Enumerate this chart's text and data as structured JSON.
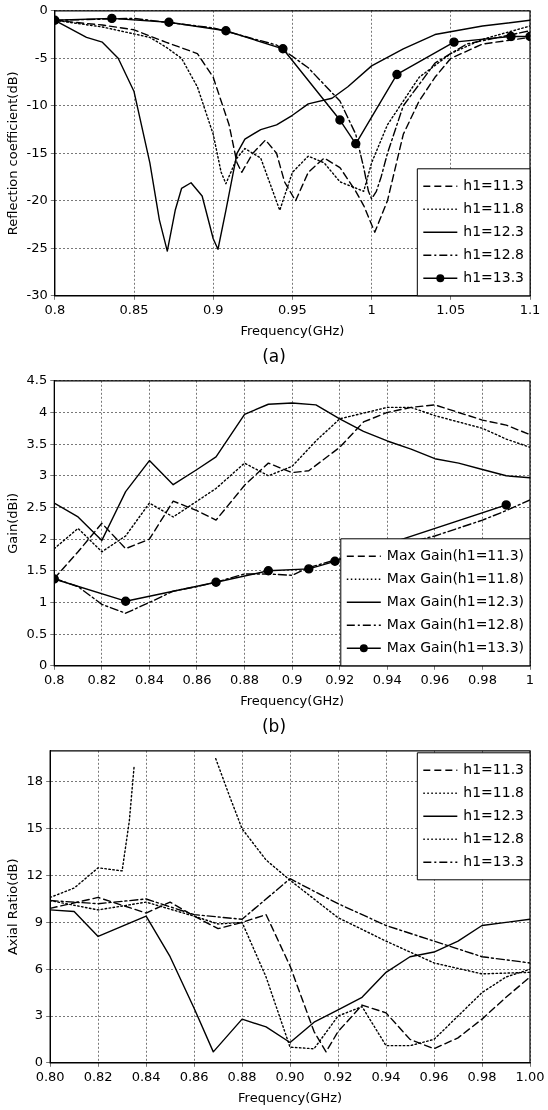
{
  "chart_data": [
    {
      "type": "line",
      "xlabel": "Frequency(GHz)",
      "ylabel": "Reflection coefficient(dB)",
      "annotations": [
        "(a)"
      ],
      "xlim": [
        0.8,
        1.1
      ],
      "xticks": [
        0.8,
        0.85,
        0.9,
        0.95,
        1,
        1.05,
        1.1
      ],
      "ylim": [
        -30,
        0
      ],
      "yticks": [
        -30,
        -25,
        -20,
        -15,
        -10,
        -5,
        0
      ],
      "grid": true,
      "legend": "bottom right",
      "series": [
        {
          "name": "h1=11.3",
          "color": "#000000",
          "line_style": "dashed",
          "marker": "none",
          "x": [
            0.8,
            0.83,
            0.85,
            0.87,
            0.89,
            0.9,
            0.91,
            0.915,
            0.918,
            0.925,
            0.933,
            0.94,
            0.945,
            0.952,
            0.96,
            0.97,
            0.98,
            0.99,
            0.995,
            1.002,
            1.01,
            1.02,
            1.03,
            1.04,
            1.05,
            1.07,
            1.1
          ],
          "values": [
            -1,
            -1.5,
            -2,
            -3.3,
            -4.5,
            -7,
            -12,
            -16,
            -17,
            -15,
            -13.6,
            -15,
            -18,
            -20,
            -17,
            -15.5,
            -16.5,
            -19,
            -20.5,
            -23.3,
            -20,
            -13,
            -9.5,
            -7,
            -5,
            -3.5,
            -2.8
          ]
        },
        {
          "name": "h1=11.8",
          "color": "#000000",
          "line_style": "dotted",
          "marker": "none",
          "x": [
            0.8,
            0.83,
            0.86,
            0.87,
            0.88,
            0.89,
            0.9,
            0.905,
            0.908,
            0.915,
            0.92,
            0.93,
            0.942,
            0.95,
            0.96,
            0.97,
            0.98,
            0.995,
            1,
            1.01,
            1.03,
            1.05,
            1.07,
            1.1
          ],
          "values": [
            -1,
            -1.7,
            -2.8,
            -3.8,
            -5,
            -8,
            -13,
            -17,
            -18.2,
            -15.5,
            -14.5,
            -15.5,
            -21,
            -17,
            -15.3,
            -16,
            -18,
            -19,
            -16,
            -12,
            -7,
            -4.5,
            -3,
            -1.6
          ]
        },
        {
          "name": "h1=12.3",
          "color": "#000000",
          "line_style": "solid",
          "marker": "none",
          "x": [
            0.8,
            0.82,
            0.83,
            0.84,
            0.85,
            0.86,
            0.866,
            0.871,
            0.876,
            0.88,
            0.886,
            0.893,
            0.9,
            0.903,
            0.908,
            0.915,
            0.92,
            0.93,
            0.94,
            0.95,
            0.96,
            0.975,
            0.985,
            1,
            1.02,
            1.04,
            1.07,
            1.1
          ],
          "values": [
            -1,
            -2.8,
            -3.3,
            -5,
            -8.5,
            -16,
            -22,
            -25.3,
            -21,
            -18.7,
            -18.1,
            -19.5,
            -24,
            -25.1,
            -21,
            -15,
            -13.5,
            -12.5,
            -12,
            -11,
            -9.8,
            -9.2,
            -8,
            -5.8,
            -4,
            -2.5,
            -1.6,
            -1
          ]
        },
        {
          "name": "h1=12.8",
          "color": "#000000",
          "line_style": "dashdot",
          "marker": "none",
          "x": [
            0.8,
            0.85,
            0.9,
            0.94,
            0.96,
            0.98,
            0.99,
            0.995,
            0.998,
            1,
            1.003,
            1.006,
            1.01,
            1.02,
            1.04,
            1.06,
            1.08,
            1.1
          ],
          "values": [
            -1,
            -0.8,
            -1.8,
            -3.6,
            -6,
            -9.5,
            -13,
            -16.5,
            -19,
            -19.8,
            -19,
            -17.5,
            -15,
            -10,
            -5.5,
            -3.5,
            -2.8,
            -2.1
          ]
        },
        {
          "name": "h1=13.3",
          "color": "#000000",
          "line_style": "solid",
          "marker": "circle",
          "x": [
            0.8,
            0.836,
            0.872,
            0.908,
            0.944,
            0.98,
            0.99,
            1.016,
            1.052,
            1.088,
            1.1
          ],
          "values": [
            -1,
            -0.8,
            -1.2,
            -2.1,
            -4,
            -11.5,
            -14,
            -6.7,
            -3.3,
            -2.7,
            -2.7
          ]
        }
      ]
    },
    {
      "type": "line",
      "xlabel": "Frequency(GHz)",
      "ylabel": "Gain(dBi)",
      "annotations": [
        "(b)"
      ],
      "xlim": [
        0.8,
        1
      ],
      "xticks": [
        0.8,
        0.82,
        0.84,
        0.86,
        0.88,
        0.9,
        0.92,
        0.94,
        0.96,
        0.98,
        1
      ],
      "ylim": [
        0,
        4.5
      ],
      "yticks": [
        0,
        0.5,
        1,
        1.5,
        2,
        2.5,
        3,
        3.5,
        4,
        4.5
      ],
      "grid": true,
      "legend": "bottom right",
      "series": [
        {
          "name": "Max Gain(h1=11.3)",
          "color": "#000000",
          "line_style": "dashed",
          "marker": "none",
          "x": [
            0.8,
            0.81,
            0.82,
            0.83,
            0.84,
            0.85,
            0.86,
            0.868,
            0.88,
            0.89,
            0.9,
            0.907,
            0.92,
            0.93,
            0.94,
            0.95,
            0.96,
            0.97,
            0.98,
            0.99,
            1
          ],
          "values": [
            1.38,
            1.8,
            2.25,
            1.85,
            2,
            2.6,
            2.45,
            2.3,
            2.85,
            3.2,
            3.05,
            3.08,
            3.45,
            3.85,
            4,
            4.08,
            4.12,
            4,
            3.88,
            3.8,
            3.65
          ]
        },
        {
          "name": "Max Gain(h1=11.8)",
          "color": "#000000",
          "line_style": "dotted",
          "marker": "none",
          "x": [
            0.8,
            0.81,
            0.82,
            0.83,
            0.84,
            0.85,
            0.86,
            0.868,
            0.88,
            0.89,
            0.9,
            0.91,
            0.92,
            0.94,
            0.95,
            0.96,
            0.97,
            0.98,
            0.99,
            1
          ],
          "values": [
            1.85,
            2.17,
            1.8,
            2.05,
            2.57,
            2.35,
            2.6,
            2.8,
            3.2,
            3,
            3.15,
            3.55,
            3.9,
            4.08,
            4.08,
            3.95,
            3.85,
            3.75,
            3.58,
            3.45
          ]
        },
        {
          "name": "Max Gain(h1=12.3)",
          "color": "#000000",
          "line_style": "solid",
          "marker": "none",
          "x": [
            0.8,
            0.81,
            0.82,
            0.83,
            0.84,
            0.85,
            0.86,
            0.868,
            0.88,
            0.89,
            0.9,
            0.91,
            0.92,
            0.93,
            0.94,
            0.95,
            0.96,
            0.97,
            0.98,
            0.99,
            1
          ],
          "values": [
            2.57,
            2.35,
            1.98,
            2.75,
            3.24,
            2.86,
            3.1,
            3.3,
            3.97,
            4.13,
            4.15,
            4.12,
            3.9,
            3.7,
            3.55,
            3.42,
            3.27,
            3.2,
            3.1,
            3,
            2.97
          ]
        },
        {
          "name": "Max Gain(h1=12.8)",
          "color": "#000000",
          "line_style": "dashdot",
          "marker": "none",
          "x": [
            0.8,
            0.81,
            0.82,
            0.83,
            0.84,
            0.85,
            0.86,
            0.868,
            0.88,
            0.89,
            0.9,
            0.907,
            0.918,
            0.96,
            0.98,
            0.99,
            1
          ],
          "values": [
            1.38,
            1.25,
            0.97,
            0.83,
            1,
            1.18,
            1.25,
            1.32,
            1.45,
            1.45,
            1.43,
            1.55,
            1.67,
            2.05,
            2.3,
            2.45,
            2.62
          ]
        },
        {
          "name": "Max Gain(h1=13.3)",
          "color": "#000000",
          "line_style": "solid",
          "marker": "circle",
          "x": [
            0.8,
            0.83,
            0.868,
            0.89,
            0.907,
            0.918,
            0.99
          ],
          "values": [
            1.37,
            1.02,
            1.32,
            1.5,
            1.53,
            1.65,
            2.54
          ]
        }
      ]
    },
    {
      "type": "line",
      "xlabel": "Frequency(GHz)",
      "ylabel": "Axial Ratio(dB)",
      "xlim": [
        0.8,
        1
      ],
      "xticks": [
        {
          "value": 0.8,
          "label": "0.80"
        },
        {
          "value": 0.82,
          "label": "0.82"
        },
        {
          "value": 0.84,
          "label": "0.84"
        },
        {
          "value": 0.86,
          "label": "0.86"
        },
        {
          "value": 0.88,
          "label": "0.88"
        },
        {
          "value": 0.9,
          "label": "0.90"
        },
        {
          "value": 0.92,
          "label": "0.92"
        },
        {
          "value": 0.94,
          "label": "0.94"
        },
        {
          "value": 0.96,
          "label": "0.96"
        },
        {
          "value": 0.98,
          "label": "0.98"
        },
        {
          "value": 1,
          "label": "1.00"
        }
      ],
      "ylim": [
        0,
        20
      ],
      "yticks": [
        0,
        3,
        6,
        9,
        12,
        15,
        18
      ],
      "grid": true,
      "legend": "top right",
      "series": [
        {
          "name": "h1=11.3",
          "color": "#000000",
          "line_style": "dashed",
          "marker": "none",
          "x": [
            0.8,
            0.82,
            0.84,
            0.85,
            0.86,
            0.87,
            0.88,
            0.89,
            0.9,
            0.91,
            0.915,
            0.92,
            0.93,
            0.94,
            0.95,
            0.96,
            0.97,
            0.98,
            0.99,
            1
          ],
          "values": [
            9.9,
            10.6,
            9.6,
            10.3,
            9.4,
            8.6,
            9,
            9.5,
            6.2,
            2,
            0.7,
            2,
            3.7,
            3.2,
            1.5,
            0.9,
            1.6,
            2.8,
            4.2,
            5.5
          ]
        },
        {
          "name": "h1=11.8",
          "color": "#000000",
          "line_style": "dotted",
          "marker": "none",
          "x": [
            0.8,
            0.81,
            0.82,
            0.83,
            0.833,
            0.835,
            0.85,
            0.869,
            0.875,
            0.88,
            0.89,
            0.9,
            0.92,
            0.94,
            0.96,
            0.98,
            1
          ],
          "values": [
            10.6,
            11.2,
            12.5,
            12.3,
            15.5,
            19,
            null,
            19.5,
            17,
            15,
            13,
            11.7,
            9.3,
            7.8,
            6.4,
            5.7,
            5.8
          ]
        },
        {
          "name": "h1=12.3",
          "color": "#000000",
          "line_style": "solid",
          "marker": "none",
          "x": [
            0.8,
            0.81,
            0.82,
            0.84,
            0.85,
            0.86,
            0.868,
            0.88,
            0.89,
            0.9,
            0.91,
            0.92,
            0.93,
            0.94,
            0.95,
            0.96,
            0.97,
            0.98,
            0.99,
            1
          ],
          "values": [
            9.8,
            9.7,
            8.1,
            9.4,
            6.8,
            3.5,
            0.7,
            2.8,
            2.3,
            1.3,
            2.6,
            3.4,
            4.2,
            5.8,
            6.8,
            7.1,
            7.8,
            8.8,
            9,
            9.2
          ]
        },
        {
          "name": "h1=12.8",
          "color": "#000000",
          "line_style": "dotted",
          "marker": "none",
          "x": [
            0.8,
            0.82,
            0.84,
            0.86,
            0.87,
            0.88,
            0.89,
            0.9,
            0.91,
            0.92,
            0.93,
            0.94,
            0.95,
            0.96,
            0.97,
            0.98,
            0.99,
            1
          ],
          "values": [
            10.4,
            9.8,
            10.3,
            9.4,
            8.9,
            9,
            5.5,
            1,
            0.9,
            3,
            3.6,
            1.1,
            1.1,
            1.5,
            3,
            4.5,
            5.5,
            6
          ]
        },
        {
          "name": "h1=13.3",
          "color": "#000000",
          "line_style": "dashdot",
          "marker": "none",
          "x": [
            0.8,
            0.82,
            0.84,
            0.86,
            0.88,
            0.9,
            0.92,
            0.94,
            0.96,
            0.98,
            1
          ],
          "values": [
            10.4,
            10.2,
            10.5,
            9.5,
            9.2,
            11.8,
            10.2,
            8.8,
            7.8,
            6.8,
            6.4
          ]
        }
      ]
    }
  ]
}
